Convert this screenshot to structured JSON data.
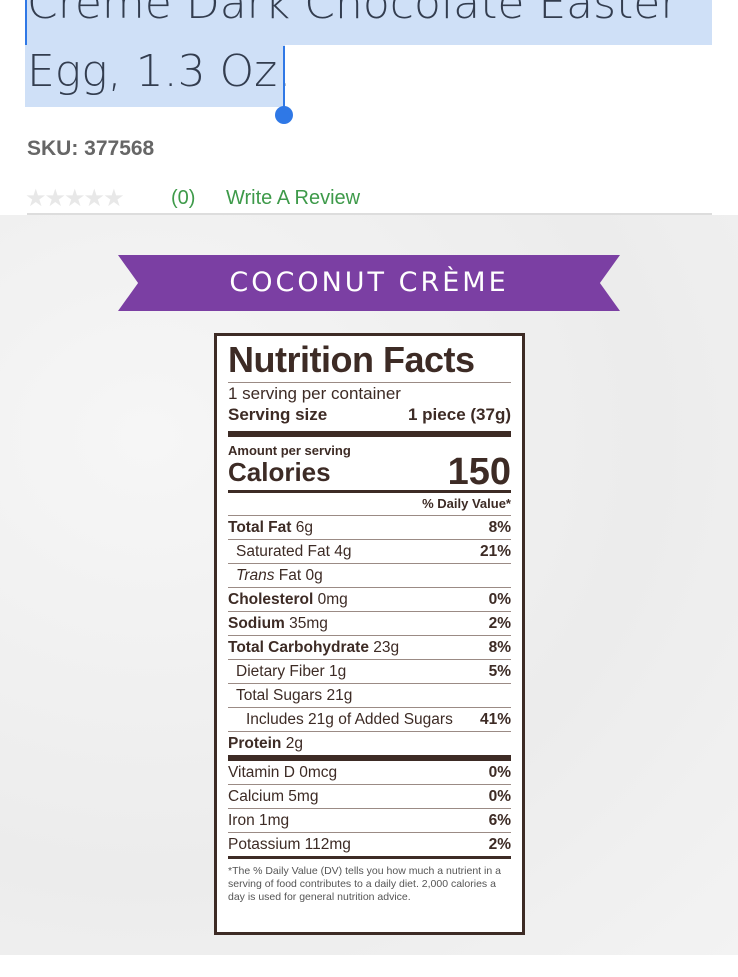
{
  "product": {
    "title_line1": "Creme Dark Chocolate Easter",
    "title_line2": "Egg, 1.3 Oz.",
    "sku": "SKU: 377568",
    "stars": "★★★★★",
    "rating_value": 0,
    "review_count": "(0)",
    "write_review": "Write A Review"
  },
  "banner": {
    "text": "COCONUT CRÈME",
    "color": "#7b3fa3"
  },
  "label": {
    "title": "Nutrition Facts",
    "servings": "1 serving per container",
    "serving_size_label": "Serving size",
    "serving_size_value": "1 piece (37g)",
    "amount_per_serving": "Amount per serving",
    "calories_label": "Calories",
    "calories_value": "150",
    "dv_header": "% Daily Value*",
    "nutrients": [
      {
        "name": "Total Fat",
        "amount": " 6g",
        "dv": "8%",
        "bold": true
      },
      {
        "name": "Saturated Fat 4g",
        "amount": "",
        "dv": "21%",
        "indent": 1
      },
      {
        "name": "Trans",
        "amount": " Fat 0g",
        "dv": "",
        "indent": 1,
        "italic": true
      },
      {
        "name": "Cholesterol",
        "amount": " 0mg",
        "dv": "0%",
        "bold": true
      },
      {
        "name": "Sodium",
        "amount": " 35mg",
        "dv": "2%",
        "bold": true
      },
      {
        "name": "Total Carbohydrate",
        "amount": " 23g",
        "dv": "8%",
        "bold": true
      },
      {
        "name": "Dietary Fiber 1g",
        "amount": "",
        "dv": "5%",
        "indent": 1
      },
      {
        "name": "Total Sugars 21g",
        "amount": "",
        "dv": "",
        "indent": 1
      },
      {
        "name": "Includes 21g of Added Sugars",
        "amount": "",
        "dv": "41%",
        "indent": 2
      },
      {
        "name": "Protein",
        "amount": " 2g",
        "dv": "",
        "bold": true
      }
    ],
    "vitamins": [
      {
        "name": "Vitamin D 0mcg",
        "dv": "0%"
      },
      {
        "name": "Calcium 5mg",
        "dv": "0%"
      },
      {
        "name": "Iron 1mg",
        "dv": "6%"
      },
      {
        "name": "Potassium 112mg",
        "dv": "2%"
      }
    ],
    "footnote": "*The % Daily Value (DV) tells you how much a nutrient in a serving of food contributes to a daily diet. 2,000 calories a day is used for general nutrition advice."
  }
}
